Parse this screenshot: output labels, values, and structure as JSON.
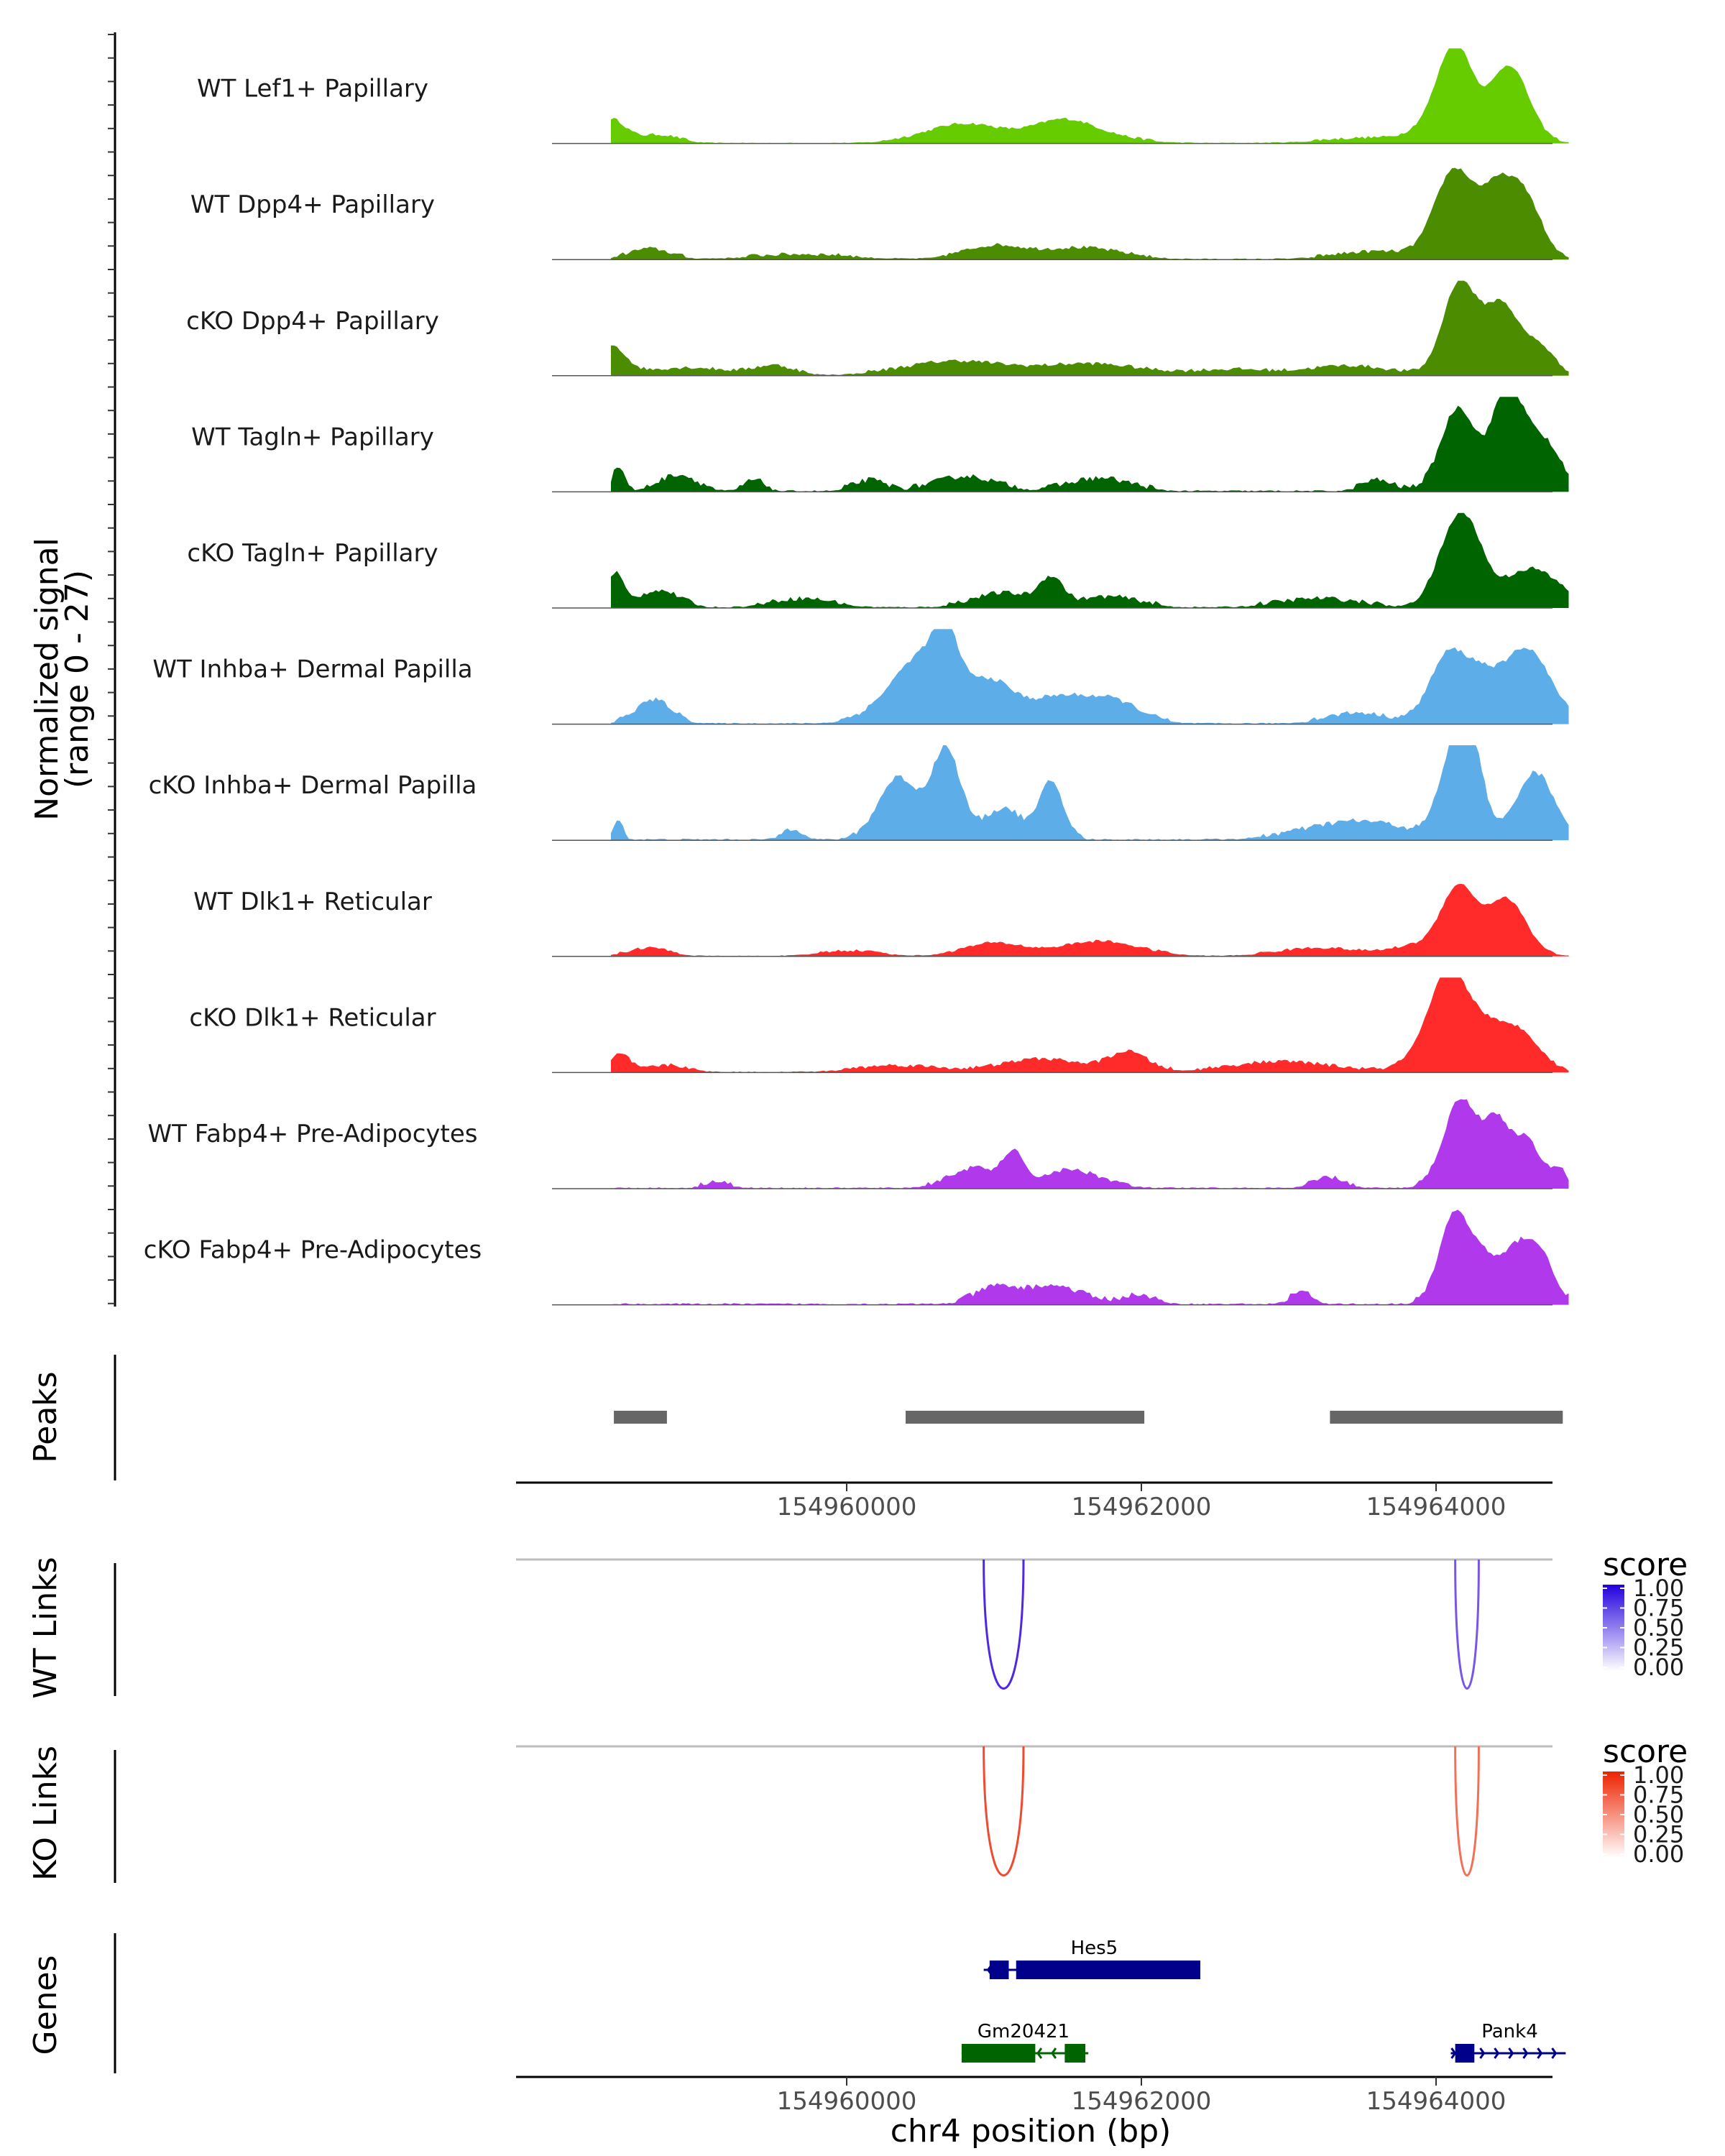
{
  "chart_data": {
    "type": "genome-browser",
    "region": {
      "chrom": "chr4",
      "start": 154958400,
      "end": 154964900
    },
    "coverage": {
      "ylabel_line1": "Normalized signal",
      "ylabel_line2": "(range 0 - 27)",
      "yrange": [
        0,
        27
      ],
      "tracks": [
        {
          "label": "WT Lef1+ Papillary",
          "color": "#66CC00"
        },
        {
          "label": "WT Dpp4+ Papillary",
          "color": "#4C8C00"
        },
        {
          "label": "cKO Dpp4+ Papillary",
          "color": "#4C8C00"
        },
        {
          "label": "WT Tagln+ Papillary",
          "color": "#006400"
        },
        {
          "label": "cKO Tagln+ Papillary",
          "color": "#006400"
        },
        {
          "label": "WT Inhba+ Dermal Papilla",
          "color": "#5DADE8"
        },
        {
          "label": "cKO Inhba+ Dermal Papilla",
          "color": "#5DADE8"
        },
        {
          "label": "WT Dlk1+ Reticular",
          "color": "#FF2A2A"
        },
        {
          "label": "cKO Dlk1+ Reticular",
          "color": "#FF2A2A"
        },
        {
          "label": "WT Fabp4+ Pre-Adipocytes",
          "color": "#B03AEB"
        },
        {
          "label": "cKO Fabp4+ Pre-Adipocytes",
          "color": "#B03AEB"
        }
      ]
    },
    "peaks": {
      "label": "Peaks",
      "color": "#666666",
      "regions": [
        [
          154958420,
          154958780
        ],
        [
          154960400,
          154962020
        ],
        [
          154963280,
          154964860
        ]
      ]
    },
    "x_axis": {
      "ticks": [
        154960000,
        154962000,
        154964000
      ],
      "tick_labels": [
        "154960000",
        "154962000",
        "154964000"
      ],
      "title": "chr4 position (bp)"
    },
    "links": [
      {
        "label": "WT Links",
        "legend_title": "score",
        "legend_ticks": [
          "1.00",
          "0.75",
          "0.50",
          "0.25",
          "0.00"
        ],
        "low_color": "#FFFFFF",
        "high_color": "#2200DD",
        "arcs": [
          {
            "start": 154960930,
            "end": 154961200,
            "score": 0.85,
            "color": "#5028E0"
          },
          {
            "start": 154964130,
            "end": 154964290,
            "score": 0.7,
            "color": "#7A55EA"
          }
        ]
      },
      {
        "label": "KO Links",
        "legend_title": "score",
        "legend_ticks": [
          "1.00",
          "0.75",
          "0.50",
          "0.25",
          "0.00"
        ],
        "low_color": "#FFFFFF",
        "high_color": "#EE2200",
        "arcs": [
          {
            "start": 154960930,
            "end": 154961200,
            "score": 0.85,
            "color": "#F04A30"
          },
          {
            "start": 154964130,
            "end": 154964290,
            "score": 0.7,
            "color": "#F27057"
          }
        ]
      }
    ],
    "genes": {
      "label": "Genes",
      "items": [
        {
          "name": "Hes5",
          "strand": "-",
          "color": "#00008B",
          "start": 154960930,
          "end": 154962400,
          "exons": [
            [
              154960970,
              154961100
            ],
            [
              154961150,
              154962400
            ]
          ]
        },
        {
          "name": "Gm20421",
          "strand": "-",
          "color": "#006400",
          "start": 154960780,
          "end": 154961640,
          "exons": [
            [
              154960780,
              154961280
            ],
            [
              154961480,
              154961620
            ]
          ]
        },
        {
          "name": "Pank4",
          "strand": "+",
          "color": "#00008B",
          "start": 154964100,
          "end": 154964880,
          "exons": [
            [
              154964130,
              154964260
            ]
          ]
        }
      ]
    }
  }
}
